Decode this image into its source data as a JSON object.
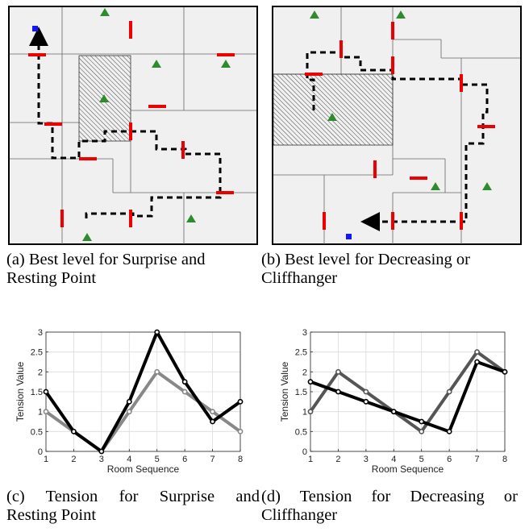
{
  "figure": {
    "captions": {
      "a": [
        "(a) Best level for Surprise and",
        "Resting Point"
      ],
      "b": [
        "(b) Best level for Decreasing or",
        "Cliffhanger"
      ],
      "c": [
        "(c) Tension for Surprise and",
        "Resting Point"
      ],
      "d": [
        "(d) Tension for Decreasing or",
        "Cliffhanger"
      ]
    },
    "colors": {
      "floor": "#f0f0f0",
      "wall": "#000000",
      "door": "#ff0000",
      "enemy": "#2e8b2e",
      "start": "#1414ff",
      "path": "#000000"
    }
  },
  "chart_data": [
    {
      "type": "line",
      "xlabel": "Room Sequence",
      "ylabel": "Tension Value",
      "x": [
        1,
        2,
        3,
        4,
        5,
        6,
        7,
        8
      ],
      "xlim": [
        1,
        8
      ],
      "ylim": [
        0,
        3
      ],
      "xticks": [
        "1",
        "2",
        "3",
        "4",
        "5",
        "6",
        "7",
        "8"
      ],
      "yticks": [
        "0",
        "0.5",
        "1",
        "1.5",
        "2",
        "2.5",
        "3"
      ],
      "grid": true,
      "series": [
        {
          "color": "#000000",
          "values": [
            1.5,
            0.5,
            0,
            1.25,
            3,
            1.75,
            0.75,
            1.25
          ]
        },
        {
          "color": "#888888",
          "values": [
            1,
            0.5,
            0,
            1,
            2,
            1.5,
            1,
            0.5
          ]
        }
      ]
    },
    {
      "type": "line",
      "xlabel": "Room Sequence",
      "ylabel": "Tension Value",
      "x": [
        1,
        2,
        3,
        4,
        5,
        6,
        7,
        8
      ],
      "xlim": [
        1,
        8
      ],
      "ylim": [
        0,
        3
      ],
      "xticks": [
        "1",
        "2",
        "3",
        "4",
        "5",
        "6",
        "7",
        "8"
      ],
      "yticks": [
        "0",
        "0.5",
        "1",
        "1.5",
        "2",
        "2.5",
        "3"
      ],
      "grid": true,
      "series": [
        {
          "color": "#000000",
          "values": [
            1.75,
            1.5,
            1.25,
            1,
            0.75,
            0.5,
            2.25,
            2
          ]
        },
        {
          "color": "#555555",
          "values": [
            1,
            2,
            1.5,
            1,
            0.5,
            1.5,
            2.5,
            2
          ]
        }
      ]
    }
  ]
}
